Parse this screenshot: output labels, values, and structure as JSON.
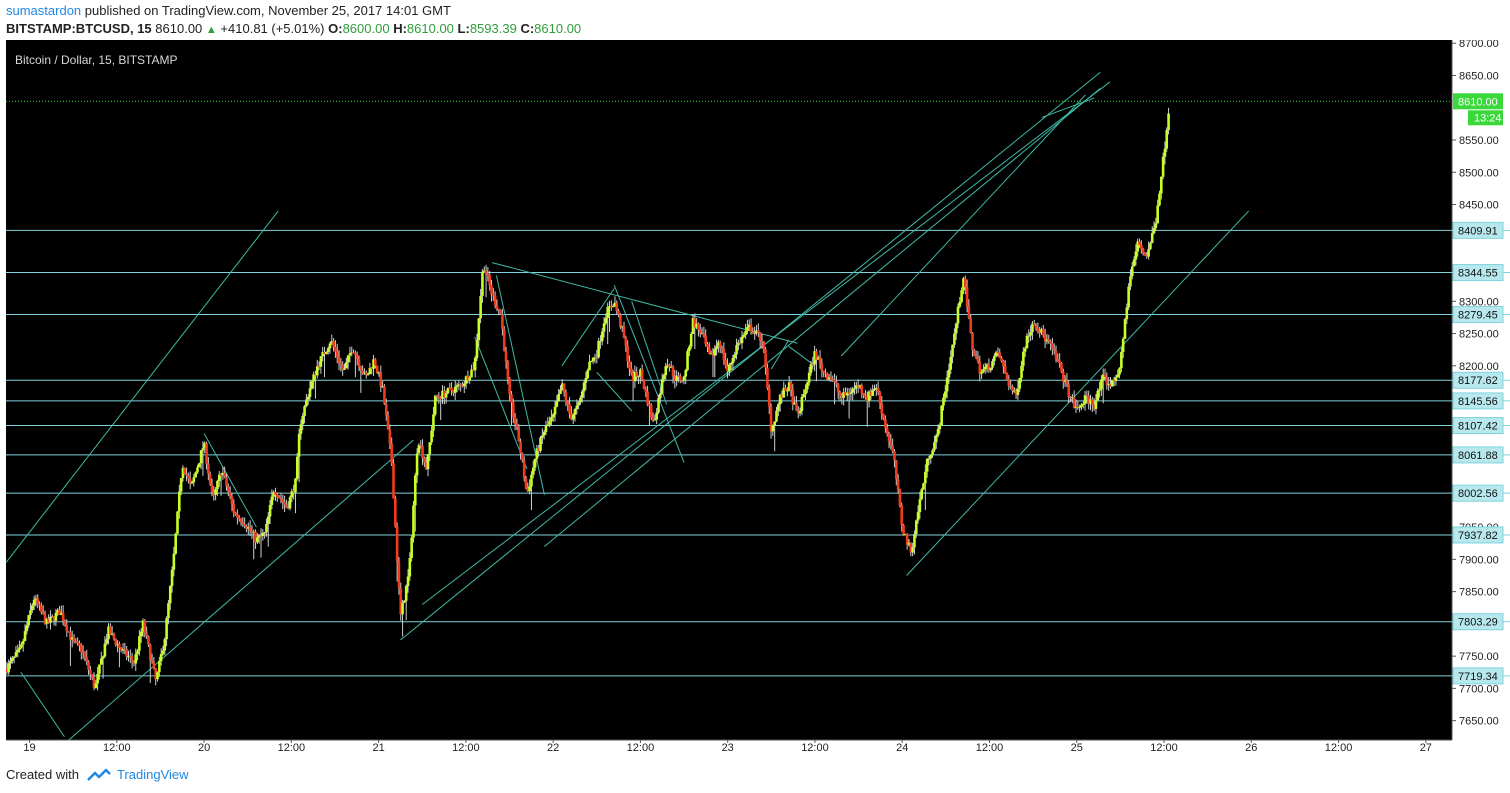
{
  "header": {
    "author": "sumastardon",
    "published_text": "published on TradingView.com, November 25, 2017 14:01 GMT",
    "symbol": "BITSTAMP:BTCUSD, 15",
    "last": "8610.00",
    "change_arrow": "▲",
    "change": "+410.81 (+5.01%)",
    "open_label": "O:",
    "open": "8600.00",
    "high_label": "H:",
    "high": "8610.00",
    "low_label": "L:",
    "low": "8593.39",
    "close_label": "C:",
    "close": "8610.00"
  },
  "chart_data": {
    "type": "candlestick",
    "title": "Bitcoin / Dollar, 15, BITSTAMP",
    "ylim": [
      7620,
      8705
    ],
    "y_ticks": [
      7650,
      7700,
      7750,
      7800,
      7850,
      7900,
      7950,
      8000,
      8050,
      8100,
      8150,
      8200,
      8250,
      8300,
      8350,
      8400,
      8450,
      8500,
      8550,
      8600,
      8650,
      8700
    ],
    "y_tick_labels": [
      "7650.00",
      "7700.00",
      "7750.00",
      "7800.00",
      "7850.00",
      "7900.00",
      "7950.00",
      "8000.00",
      "8050.00",
      "8100.00",
      "8150.00",
      "8200.00",
      "8250.00",
      "8300.00",
      "8350.00",
      "8400.00",
      "8450.00",
      "8500.00",
      "8550.00",
      "8600.00",
      "8650.00",
      "8700.00"
    ],
    "x_ticks": [
      {
        "t": 0,
        "label": "19"
      },
      {
        "t": 1,
        "label": "12:00"
      },
      {
        "t": 2,
        "label": "20"
      },
      {
        "t": 3,
        "label": "12:00"
      },
      {
        "t": 4,
        "label": "21"
      },
      {
        "t": 5,
        "label": "12:00"
      },
      {
        "t": 6,
        "label": "22"
      },
      {
        "t": 7,
        "label": "12:00"
      },
      {
        "t": 8,
        "label": "23"
      },
      {
        "t": 9,
        "label": "12:00"
      },
      {
        "t": 10,
        "label": "24"
      },
      {
        "t": 11,
        "label": "12:00"
      },
      {
        "t": 12,
        "label": "25"
      },
      {
        "t": 13,
        "label": "12:00"
      },
      {
        "t": 14,
        "label": "26"
      },
      {
        "t": 15,
        "label": "12:00"
      },
      {
        "t": 16,
        "label": "27"
      }
    ],
    "x_range": [
      -0.27,
      16.3
    ],
    "data_end": 13.07,
    "horizontal_levels": [
      8409.91,
      8344.55,
      8279.45,
      8177.62,
      8145.56,
      8107.42,
      8061.88,
      8002.56,
      7937.82,
      7803.29,
      7719.34
    ],
    "horizontal_level_labels": [
      "8409.91",
      "8344.55",
      "8279.45",
      "8177.62",
      "8145.56",
      "8107.42",
      "8061.88",
      "8002.56",
      "7937.82",
      "7803.29",
      "7719.34"
    ],
    "current_price": 8610,
    "current_price_label": "8610.00",
    "countdown_label": "13:24",
    "price_path": [
      [
        -0.27,
        7730
      ],
      [
        -0.1,
        7760
      ],
      [
        0.05,
        7840
      ],
      [
        0.2,
        7800
      ],
      [
        0.35,
        7820
      ],
      [
        0.5,
        7770
      ],
      [
        0.6,
        7760
      ],
      [
        0.75,
        7700
      ],
      [
        0.9,
        7790
      ],
      [
        1.05,
        7760
      ],
      [
        1.2,
        7740
      ],
      [
        1.3,
        7800
      ],
      [
        1.45,
        7710
      ],
      [
        1.55,
        7780
      ],
      [
        1.65,
        7900
      ],
      [
        1.75,
        8050
      ],
      [
        1.85,
        8010
      ],
      [
        2.0,
        8080
      ],
      [
        2.1,
        7990
      ],
      [
        2.2,
        8040
      ],
      [
        2.35,
        7970
      ],
      [
        2.45,
        7960
      ],
      [
        2.6,
        7930
      ],
      [
        2.7,
        7940
      ],
      [
        2.8,
        8010
      ],
      [
        2.95,
        7980
      ],
      [
        3.05,
        8020
      ],
      [
        3.1,
        8110
      ],
      [
        3.2,
        8160
      ],
      [
        3.3,
        8200
      ],
      [
        3.45,
        8240
      ],
      [
        3.6,
        8190
      ],
      [
        3.7,
        8230
      ],
      [
        3.85,
        8180
      ],
      [
        3.95,
        8210
      ],
      [
        4.05,
        8160
      ],
      [
        4.15,
        8050
      ],
      [
        4.25,
        7810
      ],
      [
        4.35,
        7880
      ],
      [
        4.45,
        8090
      ],
      [
        4.55,
        8040
      ],
      [
        4.65,
        8150
      ],
      [
        4.8,
        8160
      ],
      [
        4.95,
        8170
      ],
      [
        5.1,
        8200
      ],
      [
        5.2,
        8360
      ],
      [
        5.3,
        8310
      ],
      [
        5.4,
        8280
      ],
      [
        5.5,
        8150
      ],
      [
        5.6,
        8090
      ],
      [
        5.7,
        8000
      ],
      [
        5.8,
        8060
      ],
      [
        5.9,
        8100
      ],
      [
        6.0,
        8120
      ],
      [
        6.1,
        8170
      ],
      [
        6.2,
        8120
      ],
      [
        6.3,
        8140
      ],
      [
        6.4,
        8200
      ],
      [
        6.5,
        8220
      ],
      [
        6.6,
        8280
      ],
      [
        6.7,
        8300
      ],
      [
        6.8,
        8250
      ],
      [
        6.9,
        8180
      ],
      [
        7.0,
        8190
      ],
      [
        7.15,
        8110
      ],
      [
        7.3,
        8210
      ],
      [
        7.4,
        8180
      ],
      [
        7.5,
        8180
      ],
      [
        7.6,
        8270
      ],
      [
        7.7,
        8250
      ],
      [
        7.8,
        8210
      ],
      [
        7.9,
        8240
      ],
      [
        8.0,
        8190
      ],
      [
        8.1,
        8230
      ],
      [
        8.25,
        8260
      ],
      [
        8.4,
        8240
      ],
      [
        8.5,
        8100
      ],
      [
        8.6,
        8150
      ],
      [
        8.7,
        8170
      ],
      [
        8.8,
        8120
      ],
      [
        8.9,
        8170
      ],
      [
        9.0,
        8220
      ],
      [
        9.1,
        8190
      ],
      [
        9.2,
        8180
      ],
      [
        9.3,
        8150
      ],
      [
        9.4,
        8160
      ],
      [
        9.5,
        8170
      ],
      [
        9.6,
        8150
      ],
      [
        9.7,
        8170
      ],
      [
        9.8,
        8110
      ],
      [
        9.9,
        8060
      ],
      [
        10.0,
        7950
      ],
      [
        10.1,
        7910
      ],
      [
        10.2,
        7990
      ],
      [
        10.3,
        8060
      ],
      [
        10.4,
        8090
      ],
      [
        10.5,
        8170
      ],
      [
        10.6,
        8250
      ],
      [
        10.7,
        8340
      ],
      [
        10.8,
        8230
      ],
      [
        10.9,
        8190
      ],
      [
        11.0,
        8200
      ],
      [
        11.1,
        8220
      ],
      [
        11.2,
        8180
      ],
      [
        11.3,
        8150
      ],
      [
        11.4,
        8230
      ],
      [
        11.5,
        8270
      ],
      [
        11.6,
        8250
      ],
      [
        11.7,
        8230
      ],
      [
        11.8,
        8200
      ],
      [
        11.9,
        8160
      ],
      [
        12.0,
        8130
      ],
      [
        12.1,
        8150
      ],
      [
        12.2,
        8140
      ],
      [
        12.3,
        8180
      ],
      [
        12.4,
        8170
      ],
      [
        12.5,
        8200
      ],
      [
        12.6,
        8330
      ],
      [
        12.7,
        8390
      ],
      [
        12.8,
        8370
      ],
      [
        12.9,
        8420
      ],
      [
        13.0,
        8530
      ],
      [
        13.07,
        8620
      ]
    ],
    "trendlines": [
      [
        [
          -0.27,
          7895
        ],
        [
          2.85,
          8440
        ]
      ],
      [
        [
          0.45,
          7620
        ],
        [
          4.4,
          8085
        ]
      ],
      [
        [
          -0.1,
          7725
        ],
        [
          0.4,
          7625
        ]
      ],
      [
        [
          2.0,
          8095
        ],
        [
          2.6,
          7950
        ]
      ],
      [
        [
          4.25,
          7775
        ],
        [
          12.27,
          8655
        ]
      ],
      [
        [
          4.5,
          7830
        ],
        [
          12.38,
          8640
        ]
      ],
      [
        [
          5.3,
          8360
        ],
        [
          8.8,
          8235
        ]
      ],
      [
        [
          5.35,
          8340
        ],
        [
          5.9,
          8000
        ]
      ],
      [
        [
          5.9,
          7920
        ],
        [
          12.27,
          8630
        ]
      ],
      [
        [
          5.1,
          8245
        ],
        [
          5.7,
          8040
        ]
      ],
      [
        [
          6.1,
          8200
        ],
        [
          6.7,
          8320
        ]
      ],
      [
        [
          6.7,
          8325
        ],
        [
          7.5,
          8050
        ]
      ],
      [
        [
          6.9,
          8300
        ],
        [
          7.3,
          8140
        ]
      ],
      [
        [
          6.5,
          8190
        ],
        [
          6.9,
          8130
        ]
      ],
      [
        [
          8.5,
          8195
        ],
        [
          8.7,
          8240
        ]
      ],
      [
        [
          8.7,
          8230
        ],
        [
          9.0,
          8200
        ]
      ],
      [
        [
          9.3,
          8215
        ],
        [
          12.1,
          8620
        ]
      ],
      [
        [
          10.05,
          7875
        ],
        [
          13.97,
          8440
        ]
      ],
      [
        [
          11.6,
          8585
        ],
        [
          12.2,
          8615
        ]
      ]
    ]
  }
}
